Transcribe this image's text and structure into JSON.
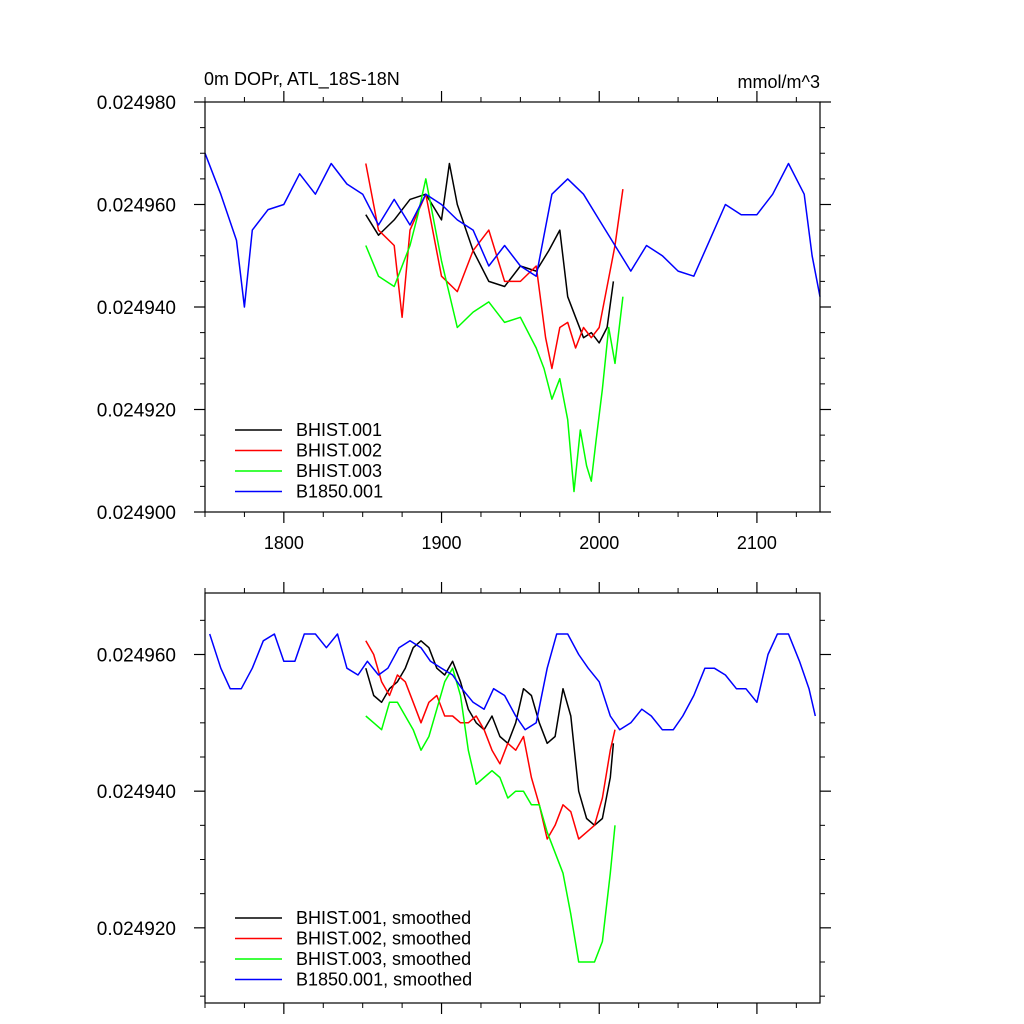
{
  "chart_data": [
    {
      "type": "line",
      "title": "0m DOPr, ATL_18S-18N",
      "units": "mmol/m^3",
      "xlabel": "",
      "ylabel": "",
      "xlim": [
        1750,
        2140
      ],
      "ylim": [
        0.0249,
        0.02498
      ],
      "x_ticks": [
        1800,
        1900,
        2000,
        2100
      ],
      "x_tick_labels": [
        "1800",
        "1900",
        "2000",
        "2100"
      ],
      "y_ticks": [
        0.0249,
        0.02492,
        0.02494,
        0.02496,
        0.02498
      ],
      "y_tick_labels": [
        "0.024900",
        "0.024920",
        "0.024940",
        "0.024960",
        "0.024980"
      ],
      "legend_position": "bottom-left",
      "series": [
        {
          "name": "BHIST.001",
          "color": "#000000",
          "x": [
            1852,
            1860,
            1870,
            1880,
            1890,
            1900,
            1905,
            1910,
            1920,
            1930,
            1940,
            1950,
            1960,
            1968,
            1975,
            1980,
            1985,
            1990,
            1995,
            2000,
            2005,
            2009
          ],
          "y": [
            0.024958,
            0.024954,
            0.024957,
            0.024961,
            0.024962,
            0.024957,
            0.024968,
            0.02496,
            0.024951,
            0.024945,
            0.024944,
            0.024948,
            0.024947,
            0.024951,
            0.024955,
            0.024942,
            0.024938,
            0.024934,
            0.024935,
            0.024933,
            0.024936,
            0.024945
          ]
        },
        {
          "name": "BHIST.002",
          "color": "#ff0000",
          "x": [
            1852,
            1860,
            1870,
            1875,
            1880,
            1890,
            1900,
            1910,
            1920,
            1930,
            1940,
            1950,
            1960,
            1966,
            1970,
            1975,
            1980,
            1985,
            1990,
            1995,
            2000,
            2005,
            2010,
            2015
          ],
          "y": [
            0.024968,
            0.024955,
            0.024952,
            0.024938,
            0.024955,
            0.024962,
            0.024946,
            0.024943,
            0.024951,
            0.024955,
            0.024945,
            0.024945,
            0.024948,
            0.024934,
            0.024928,
            0.024936,
            0.024937,
            0.024932,
            0.024936,
            0.024934,
            0.024936,
            0.024944,
            0.024952,
            0.024963
          ]
        },
        {
          "name": "BHIST.003",
          "color": "#00ff00",
          "x": [
            1852,
            1860,
            1870,
            1880,
            1885,
            1890,
            1900,
            1910,
            1920,
            1930,
            1940,
            1950,
            1960,
            1965,
            1970,
            1975,
            1980,
            1984,
            1988,
            1992,
            1995,
            1998,
            2002,
            2006,
            2010,
            2015
          ],
          "y": [
            0.024952,
            0.024946,
            0.024944,
            0.024952,
            0.024958,
            0.024965,
            0.024949,
            0.024936,
            0.024939,
            0.024941,
            0.024937,
            0.024938,
            0.024932,
            0.024928,
            0.024922,
            0.024926,
            0.024918,
            0.024904,
            0.024916,
            0.024909,
            0.024906,
            0.024914,
            0.024924,
            0.024936,
            0.024929,
            0.024942
          ]
        },
        {
          "name": "B1850.001",
          "color": "#0000ff",
          "x": [
            1750,
            1760,
            1770,
            1775,
            1780,
            1790,
            1800,
            1810,
            1820,
            1830,
            1840,
            1850,
            1860,
            1870,
            1880,
            1890,
            1900,
            1910,
            1920,
            1930,
            1940,
            1950,
            1960,
            1970,
            1980,
            1990,
            2000,
            2010,
            2020,
            2030,
            2040,
            2050,
            2060,
            2070,
            2080,
            2090,
            2100,
            2110,
            2120,
            2130,
            2135,
            2140
          ],
          "y": [
            0.02497,
            0.024962,
            0.024953,
            0.02494,
            0.024955,
            0.024959,
            0.02496,
            0.024966,
            0.024962,
            0.024968,
            0.024964,
            0.024962,
            0.024956,
            0.024961,
            0.024956,
            0.024962,
            0.02496,
            0.024957,
            0.024955,
            0.024948,
            0.024952,
            0.024948,
            0.024946,
            0.024962,
            0.024965,
            0.024962,
            0.024957,
            0.024952,
            0.024947,
            0.024952,
            0.02495,
            0.024947,
            0.024946,
            0.024953,
            0.02496,
            0.024958,
            0.024958,
            0.024962,
            0.024968,
            0.024962,
            0.02495,
            0.024942
          ]
        }
      ]
    },
    {
      "type": "line",
      "title": "",
      "xlabel": "",
      "ylabel": "",
      "xlim": [
        1750,
        2140
      ],
      "ylim": [
        0.024909,
        0.024969
      ],
      "x_ticks": [
        1800,
        1900,
        2000,
        2100
      ],
      "x_tick_labels": [],
      "y_ticks": [
        0.02492,
        0.02494,
        0.02496
      ],
      "y_tick_labels": [
        "0.024920",
        "0.024940",
        "0.024960"
      ],
      "legend_position": "bottom-left",
      "series": [
        {
          "name": "BHIST.001, smoothed",
          "color": "#000000",
          "x": [
            1852,
            1857,
            1862,
            1867,
            1872,
            1877,
            1882,
            1887,
            1892,
            1897,
            1902,
            1907,
            1912,
            1917,
            1922,
            1927,
            1932,
            1937,
            1942,
            1947,
            1952,
            1957,
            1962,
            1967,
            1972,
            1977,
            1982,
            1987,
            1992,
            1997,
            2002,
            2007,
            2009
          ],
          "y": [
            0.024958,
            0.024954,
            0.024953,
            0.024955,
            0.024956,
            0.024958,
            0.024961,
            0.024962,
            0.024961,
            0.024958,
            0.024957,
            0.024959,
            0.024956,
            0.024952,
            0.02495,
            0.024949,
            0.024951,
            0.024948,
            0.024947,
            0.02495,
            0.024955,
            0.024954,
            0.02495,
            0.024947,
            0.024948,
            0.024955,
            0.024951,
            0.02494,
            0.024936,
            0.024935,
            0.024936,
            0.024942,
            0.024947
          ]
        },
        {
          "name": "BHIST.002, smoothed",
          "color": "#ff0000",
          "x": [
            1852,
            1857,
            1862,
            1867,
            1872,
            1877,
            1882,
            1887,
            1892,
            1897,
            1902,
            1907,
            1912,
            1917,
            1922,
            1927,
            1932,
            1937,
            1942,
            1947,
            1952,
            1957,
            1962,
            1967,
            1972,
            1977,
            1982,
            1987,
            1992,
            1997,
            2002,
            2007,
            2010
          ],
          "y": [
            0.024962,
            0.02496,
            0.024956,
            0.024954,
            0.024957,
            0.024956,
            0.024953,
            0.02495,
            0.024953,
            0.024954,
            0.024951,
            0.024951,
            0.02495,
            0.02495,
            0.024951,
            0.024949,
            0.024946,
            0.024944,
            0.024947,
            0.024946,
            0.024948,
            0.024942,
            0.024938,
            0.024933,
            0.024935,
            0.024938,
            0.024937,
            0.024933,
            0.024934,
            0.024935,
            0.024939,
            0.024946,
            0.024949
          ]
        },
        {
          "name": "BHIST.003, smoothed",
          "color": "#00ff00",
          "x": [
            1852,
            1857,
            1862,
            1867,
            1872,
            1877,
            1882,
            1887,
            1892,
            1897,
            1902,
            1907,
            1912,
            1917,
            1922,
            1927,
            1932,
            1937,
            1942,
            1947,
            1952,
            1957,
            1962,
            1967,
            1972,
            1977,
            1982,
            1987,
            1992,
            1997,
            2002,
            2007,
            2010
          ],
          "y": [
            0.024951,
            0.02495,
            0.024949,
            0.024953,
            0.024953,
            0.024951,
            0.024949,
            0.024946,
            0.024948,
            0.024952,
            0.024956,
            0.024958,
            0.024954,
            0.024946,
            0.024941,
            0.024942,
            0.024943,
            0.024942,
            0.024939,
            0.02494,
            0.02494,
            0.024938,
            0.024938,
            0.024934,
            0.024931,
            0.024928,
            0.024922,
            0.024915,
            0.024915,
            0.024915,
            0.024918,
            0.024928,
            0.024935
          ]
        },
        {
          "name": "B1850.001, smoothed",
          "color": "#0000ff",
          "x": [
            1753,
            1760,
            1766,
            1773,
            1780,
            1787,
            1794,
            1800,
            1807,
            1813,
            1820,
            1827,
            1834,
            1840,
            1847,
            1853,
            1860,
            1866,
            1873,
            1880,
            1887,
            1893,
            1900,
            1907,
            1913,
            1920,
            1927,
            1933,
            1940,
            1947,
            1953,
            1960,
            1967,
            1973,
            1980,
            1987,
            1993,
            2000,
            2007,
            2013,
            2020,
            2027,
            2033,
            2040,
            2047,
            2053,
            2060,
            2067,
            2073,
            2080,
            2087,
            2093,
            2100,
            2107,
            2113,
            2120,
            2127,
            2133,
            2137
          ],
          "y": [
            0.024963,
            0.024958,
            0.024955,
            0.024955,
            0.024958,
            0.024962,
            0.024963,
            0.024959,
            0.024959,
            0.024963,
            0.024963,
            0.024961,
            0.024963,
            0.024958,
            0.024957,
            0.024959,
            0.024957,
            0.024958,
            0.024961,
            0.024962,
            0.024961,
            0.024959,
            0.024958,
            0.024957,
            0.024955,
            0.024953,
            0.024952,
            0.024955,
            0.024954,
            0.024951,
            0.024949,
            0.02495,
            0.024958,
            0.024963,
            0.024963,
            0.02496,
            0.024958,
            0.024956,
            0.024951,
            0.024949,
            0.02495,
            0.024952,
            0.024951,
            0.024949,
            0.024949,
            0.024951,
            0.024954,
            0.024958,
            0.024958,
            0.024957,
            0.024955,
            0.024955,
            0.024953,
            0.02496,
            0.024963,
            0.024963,
            0.024959,
            0.024955,
            0.024951
          ]
        }
      ]
    }
  ]
}
